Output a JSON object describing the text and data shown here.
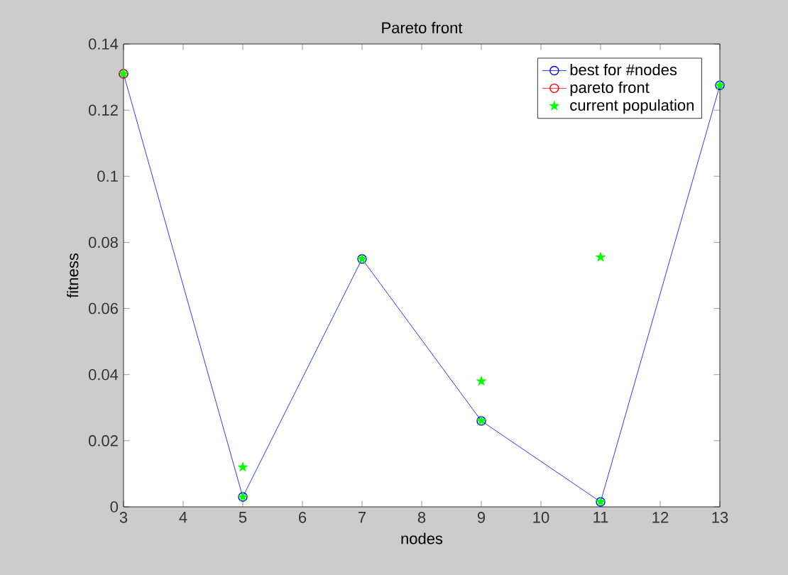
{
  "chart_data": {
    "type": "line",
    "title": "Pareto front",
    "xlabel": "nodes",
    "ylabel": "fitness",
    "xlim": [
      3,
      13
    ],
    "ylim": [
      0,
      0.14
    ],
    "xticks": [
      3,
      4,
      5,
      6,
      7,
      8,
      9,
      10,
      11,
      12,
      13
    ],
    "yticks": [
      0,
      0.02,
      0.04,
      0.06,
      0.08,
      0.1,
      0.12,
      0.14
    ],
    "legend": "top right",
    "grid": false,
    "series": [
      {
        "name": "best for #nodes",
        "color": "#0000ff",
        "type": "line",
        "marker": "circle",
        "x": [
          3,
          5,
          7,
          9,
          11,
          13
        ],
        "values": [
          0.131,
          0.003,
          0.075,
          0.026,
          0.0015,
          0.1275
        ]
      },
      {
        "name": "pareto front",
        "color": "#ff0000",
        "type": "line",
        "marker": "circle",
        "x": [
          3
        ],
        "values": [
          0.131
        ]
      },
      {
        "name": "current population",
        "color": "#00ff00",
        "type": "scatter",
        "marker": "star",
        "x": [
          3,
          5,
          5,
          7,
          9,
          9,
          11,
          11,
          13
        ],
        "values": [
          0.131,
          0.003,
          0.012,
          0.075,
          0.026,
          0.038,
          0.0015,
          0.0755,
          0.1275
        ]
      }
    ]
  }
}
